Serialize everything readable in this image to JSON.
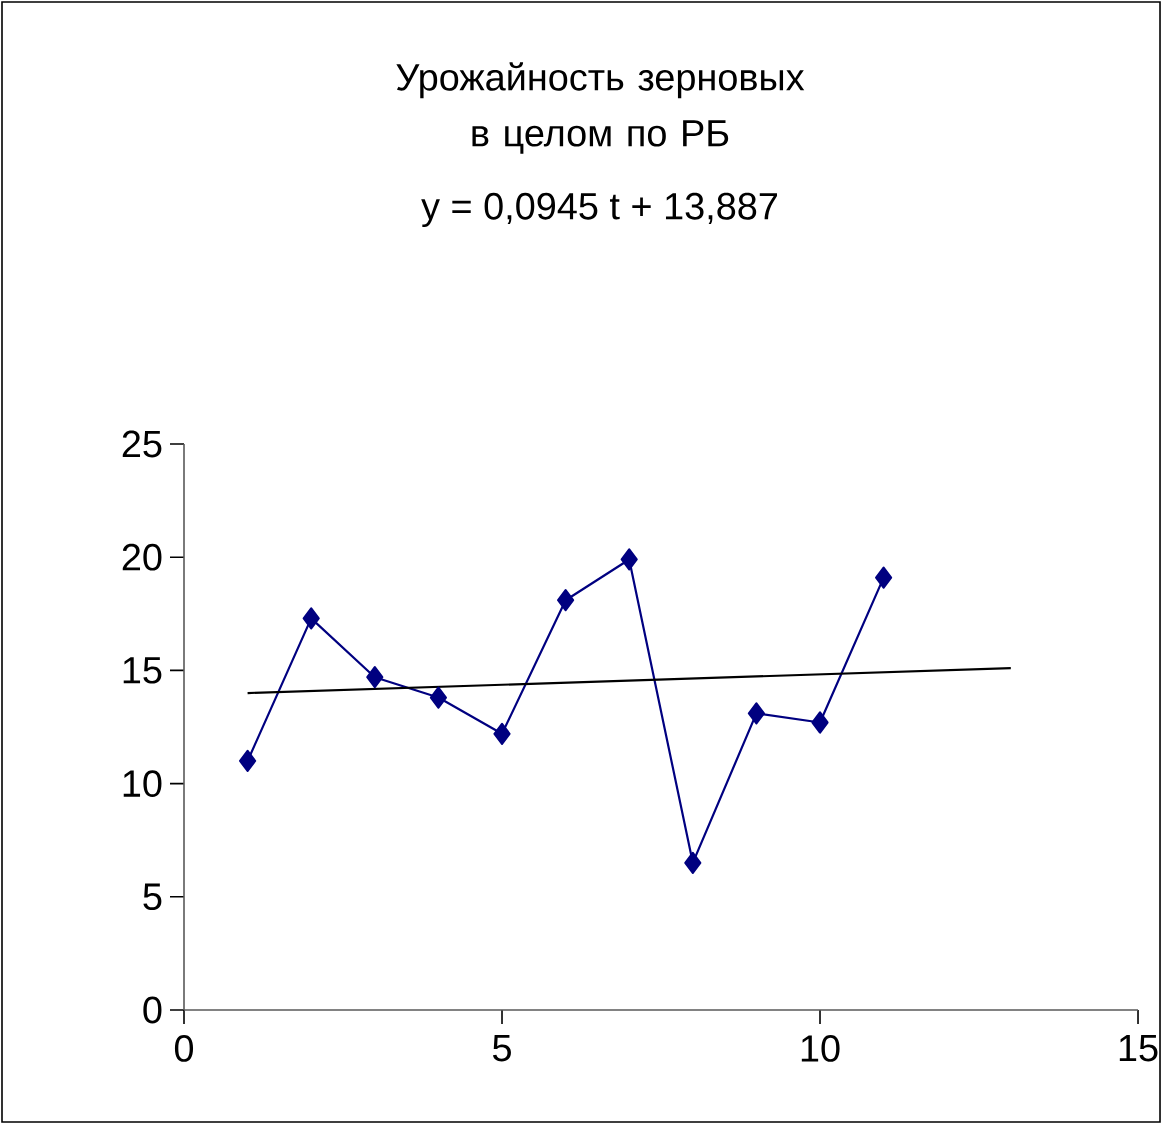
{
  "chart_data": {
    "type": "line",
    "title": "Урожайность зерновых в целом по РБ",
    "annotations": [
      "y = 0,0945 t + 13,887"
    ],
    "x": [
      1,
      2,
      3,
      4,
      5,
      6,
      7,
      8,
      9,
      10,
      11
    ],
    "series": [
      {
        "color": "#000080",
        "values": [
          11.0,
          17.3,
          14.7,
          13.8,
          12.2,
          18.1,
          19.9,
          6.5,
          13.1,
          12.7,
          19.1
        ]
      },
      {
        "color": "#000000",
        "x": [
          1,
          13
        ],
        "values": [
          14.0,
          15.1
        ],
        "marker": "none"
      }
    ],
    "xlim": [
      0,
      15
    ],
    "ylim": [
      0,
      25
    ],
    "xticks": [
      0,
      5,
      10,
      15
    ],
    "yticks": [
      0,
      5,
      10,
      15,
      20,
      25
    ],
    "marker": "diamond",
    "line_style": "solid"
  }
}
